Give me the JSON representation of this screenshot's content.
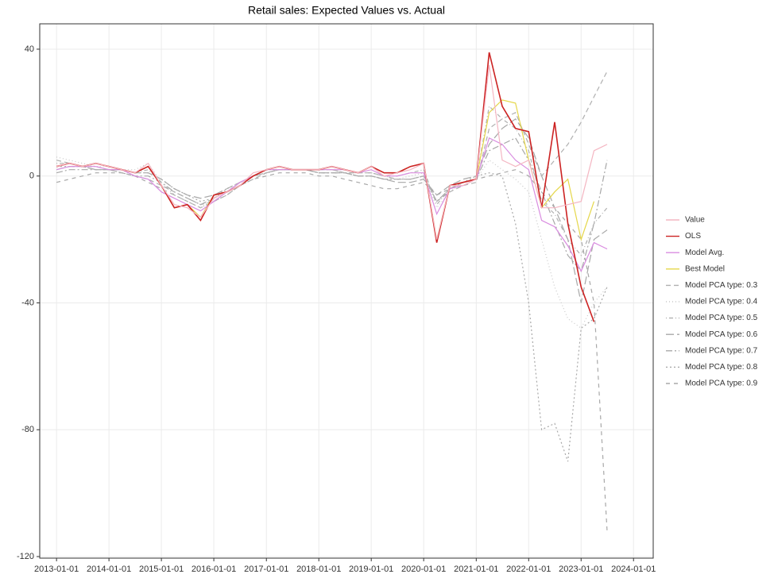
{
  "chart_data": {
    "type": "line",
    "title": "Retail sales: Expected Values vs. Actual",
    "x": [
      "2013-01-01",
      "2013-04-01",
      "2013-07-01",
      "2013-10-01",
      "2014-01-01",
      "2014-04-01",
      "2014-07-01",
      "2014-10-01",
      "2015-01-01",
      "2015-04-01",
      "2015-07-01",
      "2015-10-01",
      "2016-01-01",
      "2016-04-01",
      "2016-07-01",
      "2016-10-01",
      "2017-01-01",
      "2017-04-01",
      "2017-07-01",
      "2017-10-01",
      "2018-01-01",
      "2018-04-01",
      "2018-07-01",
      "2018-10-01",
      "2019-01-01",
      "2019-04-01",
      "2019-07-01",
      "2019-10-01",
      "2020-01-01",
      "2020-04-01",
      "2020-07-01",
      "2020-10-01",
      "2021-01-01",
      "2021-04-01",
      "2021-07-01",
      "2021-10-01",
      "2022-01-01",
      "2022-04-01",
      "2022-07-01",
      "2022-10-01",
      "2023-01-01",
      "2023-04-01",
      "2023-07-01"
    ],
    "xlim": [
      "2012-09-06",
      "2024-05-17"
    ],
    "xticks": [
      "2013-01-01",
      "2014-01-01",
      "2015-01-01",
      "2016-01-01",
      "2017-01-01",
      "2018-01-01",
      "2019-01-01",
      "2020-01-01",
      "2021-01-01",
      "2022-01-01",
      "2023-01-01",
      "2024-01-01"
    ],
    "ylim": [
      -120.5,
      48
    ],
    "yticks": [
      -120,
      -80,
      -40,
      0,
      40
    ],
    "grid": true,
    "legend": "right",
    "series": [
      {
        "name": "Value",
        "color": "#f4b6c2",
        "dash": "",
        "values": [
          3,
          4,
          3,
          4,
          3,
          2,
          1,
          4,
          -3,
          -9,
          -10,
          -13,
          -7,
          -5,
          -3,
          1,
          2,
          3,
          2,
          2,
          2,
          3,
          2,
          1,
          3,
          0,
          1,
          2,
          4,
          -20,
          -3,
          -3,
          -1,
          35,
          5,
          3,
          5,
          -10,
          -10,
          -9,
          -8,
          8,
          10
        ]
      },
      {
        "name": "OLS",
        "color": "#cc2222",
        "dash": "",
        "values": [
          3,
          4,
          3,
          4,
          3,
          2,
          1,
          3,
          -3,
          -10,
          -9,
          -14,
          -6,
          -5,
          -3,
          0,
          2,
          3,
          2,
          2,
          2,
          3,
          2,
          1,
          3,
          1,
          1,
          3,
          4,
          -21,
          -3,
          -2,
          -1,
          39,
          22,
          15,
          14,
          -10,
          17,
          -15,
          -35,
          -46,
          null
        ]
      },
      {
        "name": "Model Avg.",
        "color": "#d98ce0",
        "dash": "",
        "values": [
          2,
          3,
          3,
          3,
          2,
          2,
          0,
          -1,
          -5,
          -7,
          -9,
          -11,
          -8,
          -5,
          -2,
          0,
          2,
          2,
          2,
          2,
          2,
          2,
          2,
          1,
          2,
          0,
          0,
          1,
          1,
          -12,
          -4,
          -3,
          -1,
          12,
          10,
          5,
          2,
          -14,
          -16,
          -22,
          -30,
          -21,
          -23
        ]
      },
      {
        "name": "Best Model",
        "color": "#e5d74a",
        "dash": "",
        "values": [
          3,
          4,
          3,
          4,
          3,
          2,
          1,
          3,
          -3,
          -10,
          -9,
          -13,
          -6,
          -5,
          -3,
          0,
          2,
          3,
          2,
          2,
          2,
          3,
          2,
          1,
          3,
          1,
          1,
          3,
          4,
          -20,
          -3,
          -2,
          -1,
          20,
          24,
          23,
          5,
          -10,
          -5,
          -1,
          -20,
          -8,
          null
        ]
      },
      {
        "name": "Model PCA type: 0.3",
        "color": "#b0b0b0",
        "dash": "6 4",
        "values": [
          5,
          4,
          3,
          2,
          2,
          1,
          0,
          -1,
          -3,
          -5,
          -7,
          -9,
          -8,
          -6,
          -3,
          -1,
          1,
          2,
          2,
          2,
          2,
          2,
          1,
          1,
          1,
          0,
          -1,
          -1,
          0,
          -8,
          -5,
          -3,
          -2,
          15,
          18,
          20,
          10,
          0,
          5,
          10,
          17,
          25,
          33
        ]
      },
      {
        "name": "Model PCA type: 0.4",
        "color": "#c8c8c8",
        "dash": "1 3",
        "values": [
          6,
          5,
          4,
          3,
          3,
          2,
          2,
          4,
          -2,
          -6,
          -8,
          -10,
          -7,
          -4,
          -2,
          0,
          1,
          2,
          2,
          2,
          2,
          2,
          1,
          1,
          1,
          0,
          -1,
          0,
          1,
          -10,
          -5,
          -2,
          -1,
          5,
          2,
          -1,
          -5,
          -20,
          -35,
          -45,
          -48,
          -40,
          -35
        ]
      },
      {
        "name": "Model PCA type: 0.5",
        "color": "#b0b0b0",
        "dash": "1 3 5 3",
        "values": [
          4,
          4,
          3,
          3,
          2,
          2,
          1,
          2,
          -2,
          -6,
          -8,
          -10,
          -8,
          -5,
          -2,
          0,
          2,
          2,
          2,
          2,
          2,
          2,
          1,
          1,
          1,
          0,
          0,
          1,
          2,
          -9,
          -4,
          -2,
          -1,
          22,
          18,
          15,
          8,
          -8,
          -12,
          -20,
          -25,
          -15,
          -10
        ]
      },
      {
        "name": "Model PCA type: 0.6",
        "color": "#a8a8a8",
        "dash": "10 4",
        "values": [
          2,
          3,
          3,
          2,
          2,
          2,
          1,
          1,
          -1,
          -4,
          -6,
          -7,
          -6,
          -4,
          -2,
          0,
          1,
          2,
          2,
          2,
          1,
          1,
          1,
          0,
          0,
          -1,
          -2,
          -2,
          -1,
          -6,
          -3,
          -1,
          0,
          10,
          15,
          18,
          12,
          0,
          -10,
          -20,
          -40,
          -20,
          -17
        ]
      },
      {
        "name": "Model PCA type: 0.7",
        "color": "#a8a8a8",
        "dash": "8 3 2 3",
        "values": [
          1,
          2,
          2,
          2,
          2,
          1,
          0,
          0,
          -2,
          -5,
          -7,
          -9,
          -7,
          -5,
          -2,
          0,
          1,
          2,
          2,
          2,
          1,
          1,
          1,
          0,
          0,
          -1,
          -1,
          -1,
          0,
          -8,
          -4,
          -2,
          -1,
          8,
          10,
          12,
          5,
          -5,
          -15,
          -25,
          -30,
          -15,
          5
        ]
      },
      {
        "name": "Model PCA type: 0.8",
        "color": "#a8a8a8",
        "dash": "2 3",
        "values": [
          3,
          3,
          3,
          2,
          2,
          2,
          1,
          1,
          -1,
          -4,
          -6,
          -8,
          -7,
          -4,
          -2,
          0,
          1,
          2,
          2,
          2,
          1,
          1,
          1,
          0,
          0,
          -1,
          -1,
          -1,
          0,
          -8,
          -4,
          -2,
          0,
          1,
          0,
          -15,
          -40,
          -80,
          -78,
          -90,
          -48,
          -45,
          -35
        ]
      },
      {
        "name": "Model PCA type: 0.9",
        "color": "#a8a8a8",
        "dash": "5 5",
        "values": [
          -2,
          -1,
          0,
          1,
          1,
          1,
          0,
          -2,
          -4,
          -6,
          -8,
          -10,
          -8,
          -6,
          -3,
          -1,
          0,
          1,
          1,
          1,
          0,
          0,
          -1,
          -2,
          -3,
          -4,
          -4,
          -3,
          -2,
          -6,
          -4,
          -2,
          -1,
          0,
          1,
          2,
          0,
          -5,
          -10,
          -15,
          -20,
          -40,
          -112
        ]
      }
    ]
  }
}
